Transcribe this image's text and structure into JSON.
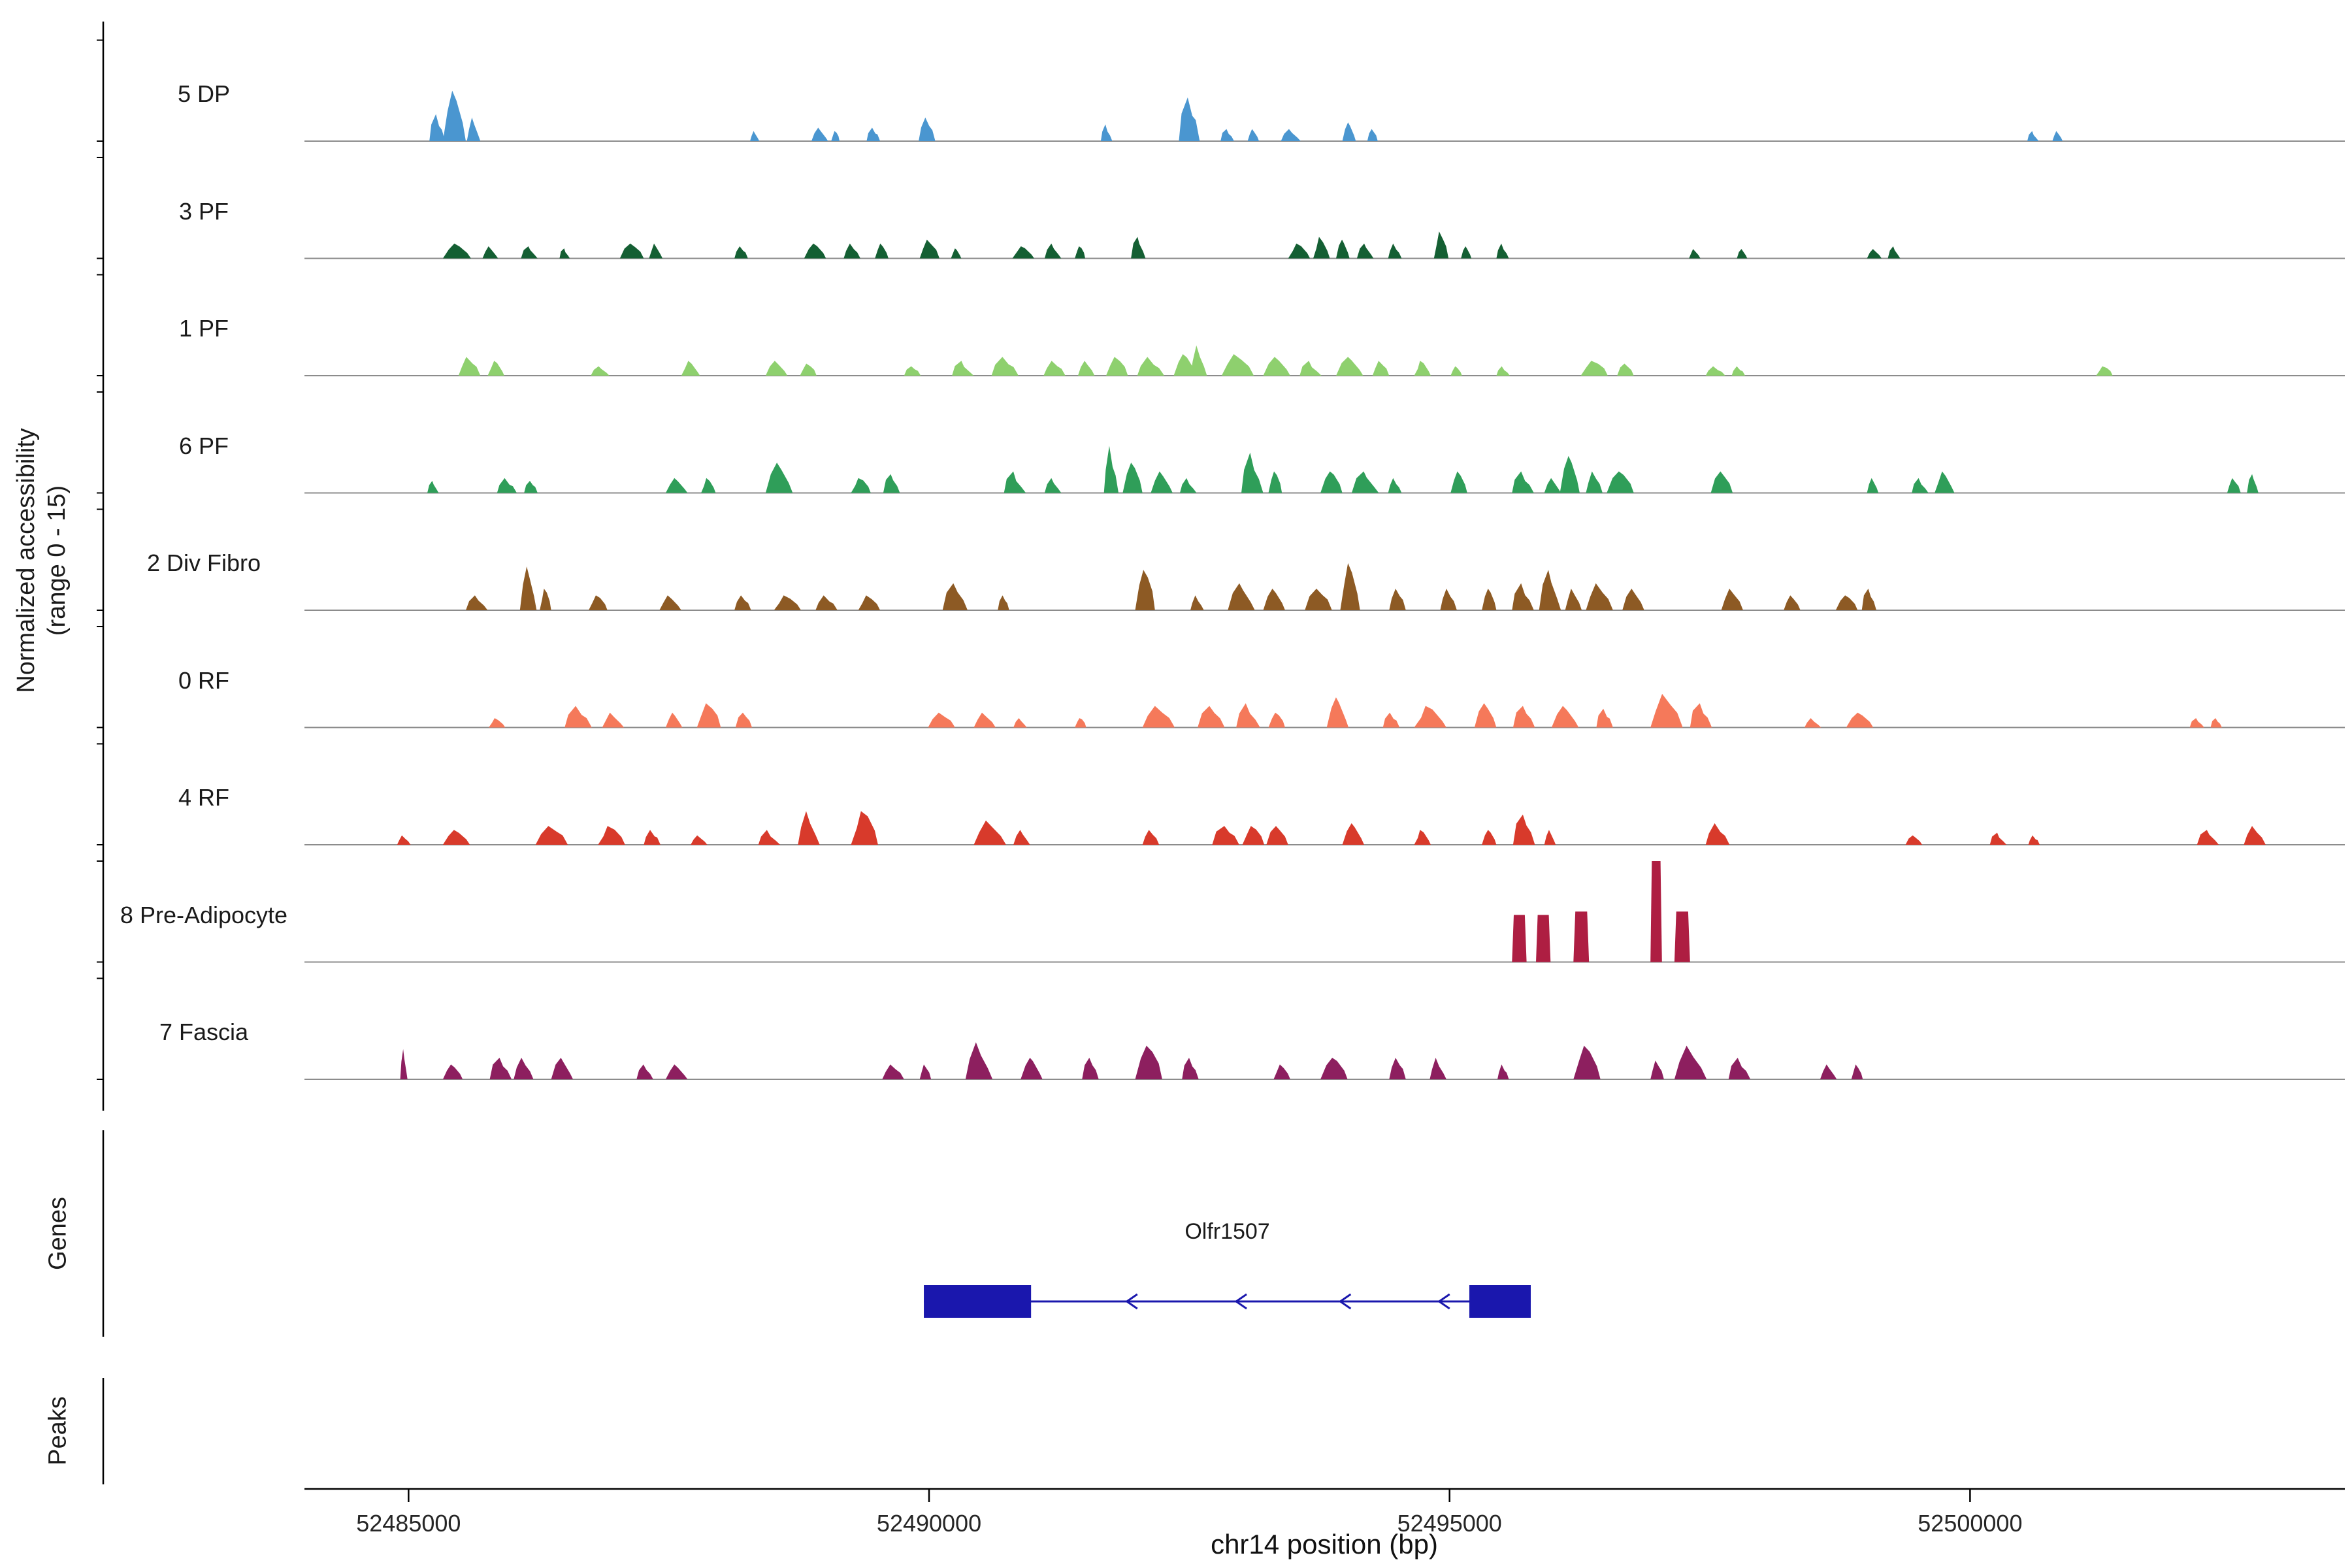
{
  "figure": {
    "ylabel_line1": "Normalized accessibility",
    "ylabel_line2": "(range 0 - 15)",
    "genes_label": "Genes",
    "peaks_label": "Peaks",
    "xlabel": "chr14 position (bp)"
  },
  "chart_data": {
    "type": "area",
    "chrom": "chr14",
    "xaxis": {
      "min": 52484000,
      "max": 52503600,
      "ticks": [
        52485000,
        52490000,
        52495000,
        52500000
      ]
    },
    "yaxis": {
      "min": 0,
      "max": 15
    },
    "grid": false,
    "tracks": [
      {
        "label": "5 DP",
        "color": "#4a96d0",
        "shape": "hill",
        "peaks": [
          [
            52485200,
            150,
            4
          ],
          [
            52485330,
            220,
            7.5
          ],
          [
            52485560,
            130,
            3.5
          ],
          [
            52488280,
            90,
            1.5
          ],
          [
            52488870,
            160,
            2
          ],
          [
            52489060,
            80,
            1.5
          ],
          [
            52489400,
            130,
            2
          ],
          [
            52489900,
            160,
            3.5
          ],
          [
            52491650,
            110,
            2.5
          ],
          [
            52492400,
            200,
            6.5
          ],
          [
            52492800,
            130,
            1.8
          ],
          [
            52493060,
            110,
            1.8
          ],
          [
            52493380,
            190,
            1.8
          ],
          [
            52493970,
            130,
            2.8
          ],
          [
            52494210,
            100,
            1.8
          ],
          [
            52500550,
            110,
            1.5
          ],
          [
            52500790,
            100,
            1.5
          ]
        ]
      },
      {
        "label": "3 PF",
        "color": "#145f33",
        "shape": "hill",
        "peaks": [
          [
            52485330,
            270,
            2.2
          ],
          [
            52485710,
            150,
            1.8
          ],
          [
            52486080,
            160,
            1.8
          ],
          [
            52486450,
            100,
            1.5
          ],
          [
            52487030,
            230,
            2.2
          ],
          [
            52487310,
            130,
            2.2
          ],
          [
            52488130,
            130,
            1.8
          ],
          [
            52488800,
            210,
            2.2
          ],
          [
            52489180,
            160,
            2.2
          ],
          [
            52489480,
            130,
            2.2
          ],
          [
            52489910,
            190,
            2.8
          ],
          [
            52490210,
            100,
            1.5
          ],
          [
            52490800,
            210,
            1.8
          ],
          [
            52491110,
            160,
            2.2
          ],
          [
            52491400,
            100,
            1.8
          ],
          [
            52491940,
            140,
            3.2
          ],
          [
            52493450,
            210,
            2.2
          ],
          [
            52493690,
            160,
            3.2
          ],
          [
            52493910,
            130,
            2.8
          ],
          [
            52494110,
            160,
            2.2
          ],
          [
            52494410,
            130,
            2.2
          ],
          [
            52494850,
            140,
            4
          ],
          [
            52495110,
            100,
            1.8
          ],
          [
            52495450,
            120,
            2.2
          ],
          [
            52497300,
            110,
            1.4
          ],
          [
            52497760,
            100,
            1.4
          ],
          [
            52499010,
            140,
            1.4
          ],
          [
            52499210,
            120,
            1.8
          ]
        ]
      },
      {
        "label": "1 PF",
        "color": "#8ed06e",
        "shape": "hill",
        "peaks": [
          [
            52485480,
            210,
            2.8
          ],
          [
            52485760,
            160,
            2.2
          ],
          [
            52486750,
            180,
            1.4
          ],
          [
            52487620,
            180,
            2.2
          ],
          [
            52488430,
            210,
            2.2
          ],
          [
            52488760,
            160,
            1.8
          ],
          [
            52489760,
            160,
            1.4
          ],
          [
            52490220,
            210,
            2.2
          ],
          [
            52490600,
            260,
            2.8
          ],
          [
            52491100,
            210,
            2.2
          ],
          [
            52491430,
            160,
            2.2
          ],
          [
            52491700,
            210,
            2.8
          ],
          [
            52492000,
            260,
            2.8
          ],
          [
            52492350,
            210,
            3.2
          ],
          [
            52492510,
            160,
            4.5
          ],
          [
            52492810,
            310,
            3.2
          ],
          [
            52493210,
            260,
            2.8
          ],
          [
            52493560,
            210,
            2.2
          ],
          [
            52493910,
            260,
            2.8
          ],
          [
            52494260,
            160,
            2.2
          ],
          [
            52494660,
            160,
            2.2
          ],
          [
            52495010,
            110,
            1.4
          ],
          [
            52495450,
            130,
            1.4
          ],
          [
            52496260,
            260,
            2.2
          ],
          [
            52496610,
            160,
            1.8
          ],
          [
            52497460,
            190,
            1.4
          ],
          [
            52497710,
            130,
            1.4
          ],
          [
            52501210,
            160,
            1.4
          ]
        ]
      },
      {
        "label": "6 PF",
        "color": "#2f9e59",
        "shape": "hill",
        "peaks": [
          [
            52485180,
            110,
            1.8
          ],
          [
            52485850,
            190,
            2.2
          ],
          [
            52486110,
            130,
            1.8
          ],
          [
            52487470,
            210,
            2.2
          ],
          [
            52487810,
            140,
            2.2
          ],
          [
            52488430,
            260,
            4.5
          ],
          [
            52489250,
            190,
            2.2
          ],
          [
            52489560,
            160,
            2.8
          ],
          [
            52490720,
            210,
            3.2
          ],
          [
            52491110,
            160,
            2.2
          ],
          [
            52491680,
            140,
            7
          ],
          [
            52491860,
            190,
            4.5
          ],
          [
            52492130,
            210,
            3.2
          ],
          [
            52492410,
            160,
            2.2
          ],
          [
            52493000,
            210,
            6
          ],
          [
            52493260,
            130,
            3.2
          ],
          [
            52493760,
            210,
            3.2
          ],
          [
            52494060,
            260,
            3.2
          ],
          [
            52494410,
            130,
            2.2
          ],
          [
            52495010,
            160,
            3.2
          ],
          [
            52495600,
            210,
            3.2
          ],
          [
            52495910,
            160,
            2.2
          ],
          [
            52496060,
            190,
            5.5
          ],
          [
            52496310,
            160,
            3.2
          ],
          [
            52496510,
            260,
            3.2
          ],
          [
            52497510,
            210,
            3.2
          ],
          [
            52499010,
            110,
            2.2
          ],
          [
            52499440,
            160,
            2.2
          ],
          [
            52499660,
            190,
            3.2
          ],
          [
            52502470,
            130,
            2.2
          ],
          [
            52502660,
            110,
            2.8
          ]
        ]
      },
      {
        "label": "2 Div Fibro",
        "color": "#8d5a24",
        "shape": "hill",
        "peaks": [
          [
            52485550,
            210,
            2.2
          ],
          [
            52486070,
            160,
            6.5
          ],
          [
            52486260,
            110,
            3.2
          ],
          [
            52486730,
            180,
            2.2
          ],
          [
            52487410,
            210,
            2.2
          ],
          [
            52488130,
            160,
            2.2
          ],
          [
            52488510,
            260,
            2.2
          ],
          [
            52488910,
            210,
            2.2
          ],
          [
            52489320,
            210,
            2.2
          ],
          [
            52490130,
            240,
            4
          ],
          [
            52490660,
            110,
            2.2
          ],
          [
            52491980,
            190,
            6
          ],
          [
            52492510,
            130,
            2.2
          ],
          [
            52492870,
            260,
            4
          ],
          [
            52493210,
            210,
            3.2
          ],
          [
            52493610,
            260,
            3.2
          ],
          [
            52493950,
            190,
            7
          ],
          [
            52494420,
            160,
            3.2
          ],
          [
            52494910,
            160,
            3.2
          ],
          [
            52495310,
            140,
            3.2
          ],
          [
            52495600,
            210,
            4
          ],
          [
            52495860,
            210,
            6
          ],
          [
            52496110,
            160,
            3.2
          ],
          [
            52496310,
            260,
            4
          ],
          [
            52496660,
            210,
            3.2
          ],
          [
            52497610,
            210,
            3.2
          ],
          [
            52498210,
            160,
            2.2
          ],
          [
            52498710,
            210,
            2.2
          ],
          [
            52498960,
            140,
            3.2
          ]
        ]
      },
      {
        "label": "0 RF",
        "color": "#f5795a",
        "shape": "hill",
        "peaks": [
          [
            52485770,
            160,
            1.4
          ],
          [
            52486500,
            260,
            3.2
          ],
          [
            52486860,
            210,
            2.2
          ],
          [
            52487470,
            160,
            2.2
          ],
          [
            52487770,
            230,
            3.6
          ],
          [
            52488140,
            160,
            2.2
          ],
          [
            52489990,
            260,
            2.2
          ],
          [
            52490430,
            210,
            2.2
          ],
          [
            52490810,
            130,
            1.4
          ],
          [
            52491400,
            110,
            1.4
          ],
          [
            52492050,
            310,
            3.2
          ],
          [
            52492580,
            260,
            3.2
          ],
          [
            52492950,
            230,
            3.6
          ],
          [
            52493260,
            160,
            2.2
          ],
          [
            52493820,
            210,
            4.5
          ],
          [
            52494360,
            160,
            2.2
          ],
          [
            52494660,
            310,
            3.2
          ],
          [
            52495240,
            210,
            3.6
          ],
          [
            52495610,
            210,
            3.2
          ],
          [
            52495980,
            260,
            3.2
          ],
          [
            52496410,
            160,
            2.8
          ],
          [
            52496930,
            310,
            5
          ],
          [
            52497310,
            210,
            3.6
          ],
          [
            52498410,
            160,
            1.4
          ],
          [
            52498810,
            260,
            2.2
          ],
          [
            52502110,
            140,
            1.4
          ],
          [
            52502310,
            110,
            1.4
          ]
        ]
      },
      {
        "label": "4 RF",
        "color": "#d83a2b",
        "shape": "hill",
        "peaks": [
          [
            52484890,
            130,
            1.4
          ],
          [
            52485330,
            260,
            2.2
          ],
          [
            52486220,
            310,
            2.8
          ],
          [
            52486820,
            260,
            2.8
          ],
          [
            52487260,
            160,
            2.2
          ],
          [
            52487710,
            160,
            1.4
          ],
          [
            52488360,
            210,
            2.2
          ],
          [
            52488740,
            210,
            5
          ],
          [
            52489250,
            260,
            5
          ],
          [
            52490430,
            310,
            3.6
          ],
          [
            52490810,
            160,
            2.2
          ],
          [
            52492050,
            160,
            2.2
          ],
          [
            52492720,
            260,
            2.8
          ],
          [
            52493010,
            210,
            2.8
          ],
          [
            52493240,
            210,
            2.8
          ],
          [
            52493970,
            210,
            3.2
          ],
          [
            52494660,
            160,
            2.2
          ],
          [
            52495310,
            140,
            2.2
          ],
          [
            52495610,
            210,
            4.5
          ],
          [
            52495910,
            110,
            2.2
          ],
          [
            52497460,
            230,
            3.2
          ],
          [
            52499380,
            160,
            1.4
          ],
          [
            52500190,
            160,
            1.8
          ],
          [
            52500560,
            110,
            1.4
          ],
          [
            52502180,
            210,
            2.2
          ],
          [
            52502630,
            210,
            2.8
          ]
        ]
      },
      {
        "label": "8 Pre-Adipocyte",
        "color": "#ae1e42",
        "shape": "block",
        "peaks": [
          [
            52495600,
            140,
            7
          ],
          [
            52495830,
            140,
            7
          ],
          [
            52496190,
            150,
            7.5
          ],
          [
            52496930,
            110,
            15
          ],
          [
            52497160,
            150,
            7.5
          ]
        ]
      },
      {
        "label": "7 Fascia",
        "color": "#8d1f5f",
        "shape": "hill",
        "peaks": [
          [
            52484920,
            70,
            4.5
          ],
          [
            52485330,
            190,
            2.2
          ],
          [
            52485780,
            210,
            3.2
          ],
          [
            52486010,
            190,
            3.2
          ],
          [
            52486370,
            210,
            3.2
          ],
          [
            52487190,
            160,
            2.2
          ],
          [
            52487470,
            210,
            2.2
          ],
          [
            52489550,
            210,
            2.2
          ],
          [
            52489910,
            110,
            2.2
          ],
          [
            52490350,
            260,
            5.5
          ],
          [
            52490880,
            210,
            3.2
          ],
          [
            52491470,
            160,
            3.2
          ],
          [
            52491980,
            260,
            5
          ],
          [
            52492430,
            160,
            3.2
          ],
          [
            52493310,
            160,
            2.2
          ],
          [
            52493760,
            260,
            3.2
          ],
          [
            52494420,
            160,
            3.2
          ],
          [
            52494810,
            160,
            3.2
          ],
          [
            52495460,
            110,
            2.2
          ],
          [
            52496190,
            260,
            5
          ],
          [
            52496930,
            130,
            2.8
          ],
          [
            52497160,
            310,
            5
          ],
          [
            52497680,
            210,
            3.2
          ],
          [
            52498560,
            160,
            2.2
          ],
          [
            52498860,
            110,
            2.2
          ]
        ]
      }
    ],
    "gene": {
      "name": "Olfr1507",
      "strand": "-",
      "color": "#1a17ad",
      "exons": [
        [
          52489950,
          52490980
        ],
        [
          52495190,
          52495780
        ]
      ],
      "arrows_bp": [
        52491900,
        52492950,
        52493950,
        52494900
      ]
    },
    "peaks": []
  }
}
